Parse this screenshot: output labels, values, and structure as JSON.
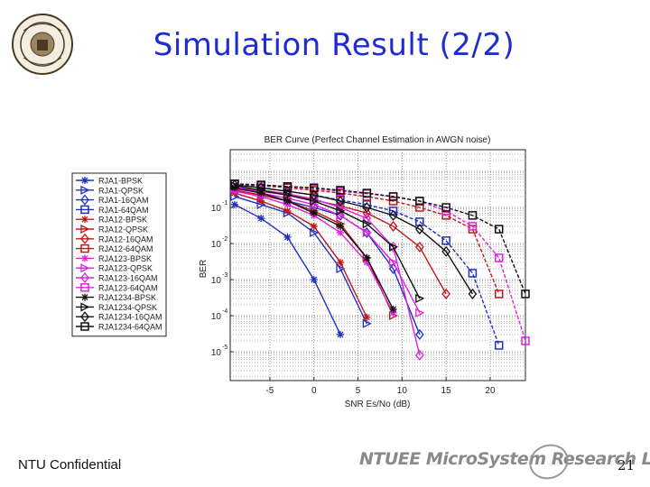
{
  "slide": {
    "title": "Simulation Result (2/2)",
    "footer_left": "NTU Confidential",
    "footer_logo": "NTUEE MicroSystem Research Lab.",
    "page_number": "21"
  },
  "chart_data": {
    "type": "line",
    "title": "BER Curve (Perfect Channel Estimation in AWGN noise)",
    "xlabel": "SNR Es/No (dB)",
    "ylabel": "BER",
    "xlim": [
      -9.5,
      24
    ],
    "ylim_log10": [
      -5.8,
      0.6
    ],
    "y_scale": "log",
    "grid": true,
    "legend_position": "outside-left",
    "x_ticks": [
      -5,
      0,
      5,
      10,
      15,
      20
    ],
    "y_ticks": [
      {
        "exp": "-1",
        "value": 0.1
      },
      {
        "exp": "-2",
        "value": 0.01
      },
      {
        "exp": "-3",
        "value": 0.001
      },
      {
        "exp": "-4",
        "value": 0.0001
      },
      {
        "exp": "-5",
        "value": 1e-05
      }
    ],
    "series": [
      {
        "name": "RJA1-BPSK",
        "color": "#2030c0",
        "marker": "star",
        "x": [
          -9,
          -6,
          -3,
          0,
          3
        ],
        "y": [
          0.12,
          0.05,
          0.015,
          0.001,
          3e-05
        ]
      },
      {
        "name": "RJA1-QPSK",
        "color": "#2030c0",
        "marker": "tri-right",
        "x": [
          -9,
          -6,
          -3,
          0,
          3,
          6
        ],
        "y": [
          0.2,
          0.12,
          0.07,
          0.02,
          0.002,
          6e-05
        ]
      },
      {
        "name": "RJA1-16QAM",
        "color": "#2030c0",
        "marker": "diamond",
        "x": [
          -9,
          -6,
          -3,
          0,
          3,
          6,
          9,
          12
        ],
        "y": [
          0.3,
          0.22,
          0.15,
          0.1,
          0.06,
          0.02,
          0.002,
          3e-05
        ]
      },
      {
        "name": "RJA1-64QAM",
        "color": "#2030c0",
        "marker": "square",
        "x": [
          -9,
          -6,
          -3,
          0,
          3,
          6,
          9,
          12,
          15,
          18,
          21
        ],
        "y": [
          0.45,
          0.35,
          0.28,
          0.22,
          0.16,
          0.12,
          0.08,
          0.04,
          0.012,
          0.0015,
          1.5e-05
        ]
      },
      {
        "name": "RJA12-BPSK",
        "color": "#c01818",
        "marker": "star",
        "x": [
          -9,
          -6,
          -3,
          0,
          3,
          6
        ],
        "y": [
          0.25,
          0.15,
          0.08,
          0.03,
          0.003,
          9e-05
        ]
      },
      {
        "name": "RJA12-QPSK",
        "color": "#c01818",
        "marker": "tri-right",
        "x": [
          -9,
          -6,
          -3,
          0,
          3,
          6,
          9
        ],
        "y": [
          0.3,
          0.22,
          0.15,
          0.08,
          0.035,
          0.004,
          0.0001
        ]
      },
      {
        "name": "RJA12-16QAM",
        "color": "#c01818",
        "marker": "diamond",
        "x": [
          -9,
          -6,
          -3,
          0,
          3,
          6,
          9,
          12,
          15
        ],
        "y": [
          0.35,
          0.28,
          0.22,
          0.16,
          0.11,
          0.07,
          0.03,
          0.008,
          0.0004
        ]
      },
      {
        "name": "RJA12-64QAM",
        "color": "#c01818",
        "marker": "square",
        "x": [
          -9,
          -6,
          -3,
          0,
          3,
          6,
          9,
          12,
          15,
          18,
          21
        ],
        "y": [
          0.45,
          0.4,
          0.35,
          0.3,
          0.25,
          0.2,
          0.15,
          0.1,
          0.06,
          0.025,
          0.0004
        ]
      },
      {
        "name": "RJA123-BPSK",
        "color": "#e020e0",
        "marker": "star",
        "x": [
          -9,
          -6,
          -3,
          0,
          3,
          6,
          9
        ],
        "y": [
          0.28,
          0.2,
          0.12,
          0.06,
          0.02,
          0.003,
          0.00012
        ]
      },
      {
        "name": "RJA123-QPSK",
        "color": "#e020e0",
        "marker": "tri-right",
        "x": [
          -9,
          -6,
          -3,
          0,
          3,
          6,
          9,
          12
        ],
        "y": [
          0.33,
          0.25,
          0.18,
          0.12,
          0.06,
          0.02,
          0.003,
          0.00012
        ]
      },
      {
        "name": "RJA123-16QAM",
        "color": "#e020e0",
        "marker": "diamond",
        "x": [
          -9,
          -6,
          -3,
          0,
          3,
          6,
          9,
          12
        ],
        "y": [
          0.35,
          0.3,
          0.24,
          0.17,
          0.1,
          0.05,
          0.008,
          8e-06
        ]
      },
      {
        "name": "RJA123-64QAM",
        "color": "#e020e0",
        "marker": "square",
        "x": [
          -9,
          -6,
          -3,
          0,
          3,
          6,
          9,
          12,
          15,
          18,
          21,
          24
        ],
        "y": [
          0.45,
          0.42,
          0.38,
          0.33,
          0.28,
          0.24,
          0.2,
          0.15,
          0.08,
          0.03,
          0.004,
          2e-05
        ]
      },
      {
        "name": "RJA1234-BPSK",
        "color": "#111111",
        "marker": "star",
        "x": [
          -9,
          -6,
          -3,
          0,
          3,
          6,
          9
        ],
        "y": [
          0.35,
          0.25,
          0.15,
          0.07,
          0.03,
          0.004,
          0.00015
        ]
      },
      {
        "name": "RJA1234-QPSK",
        "color": "#111111",
        "marker": "tri-right",
        "x": [
          -9,
          -6,
          -3,
          0,
          3,
          6,
          9,
          12
        ],
        "y": [
          0.4,
          0.3,
          0.22,
          0.15,
          0.08,
          0.035,
          0.008,
          0.0003
        ]
      },
      {
        "name": "RJA1234-16QAM",
        "color": "#111111",
        "marker": "diamond",
        "x": [
          -9,
          -6,
          -3,
          0,
          3,
          6,
          9,
          12,
          15,
          18
        ],
        "y": [
          0.42,
          0.35,
          0.28,
          0.22,
          0.15,
          0.1,
          0.06,
          0.025,
          0.006,
          0.0004
        ]
      },
      {
        "name": "RJA1234-64QAM",
        "color": "#111111",
        "marker": "square",
        "x": [
          -9,
          -6,
          -3,
          0,
          3,
          6,
          9,
          12,
          15,
          18,
          21,
          24
        ],
        "y": [
          0.45,
          0.42,
          0.38,
          0.35,
          0.3,
          0.25,
          0.2,
          0.15,
          0.1,
          0.06,
          0.025,
          0.0004
        ]
      }
    ]
  }
}
